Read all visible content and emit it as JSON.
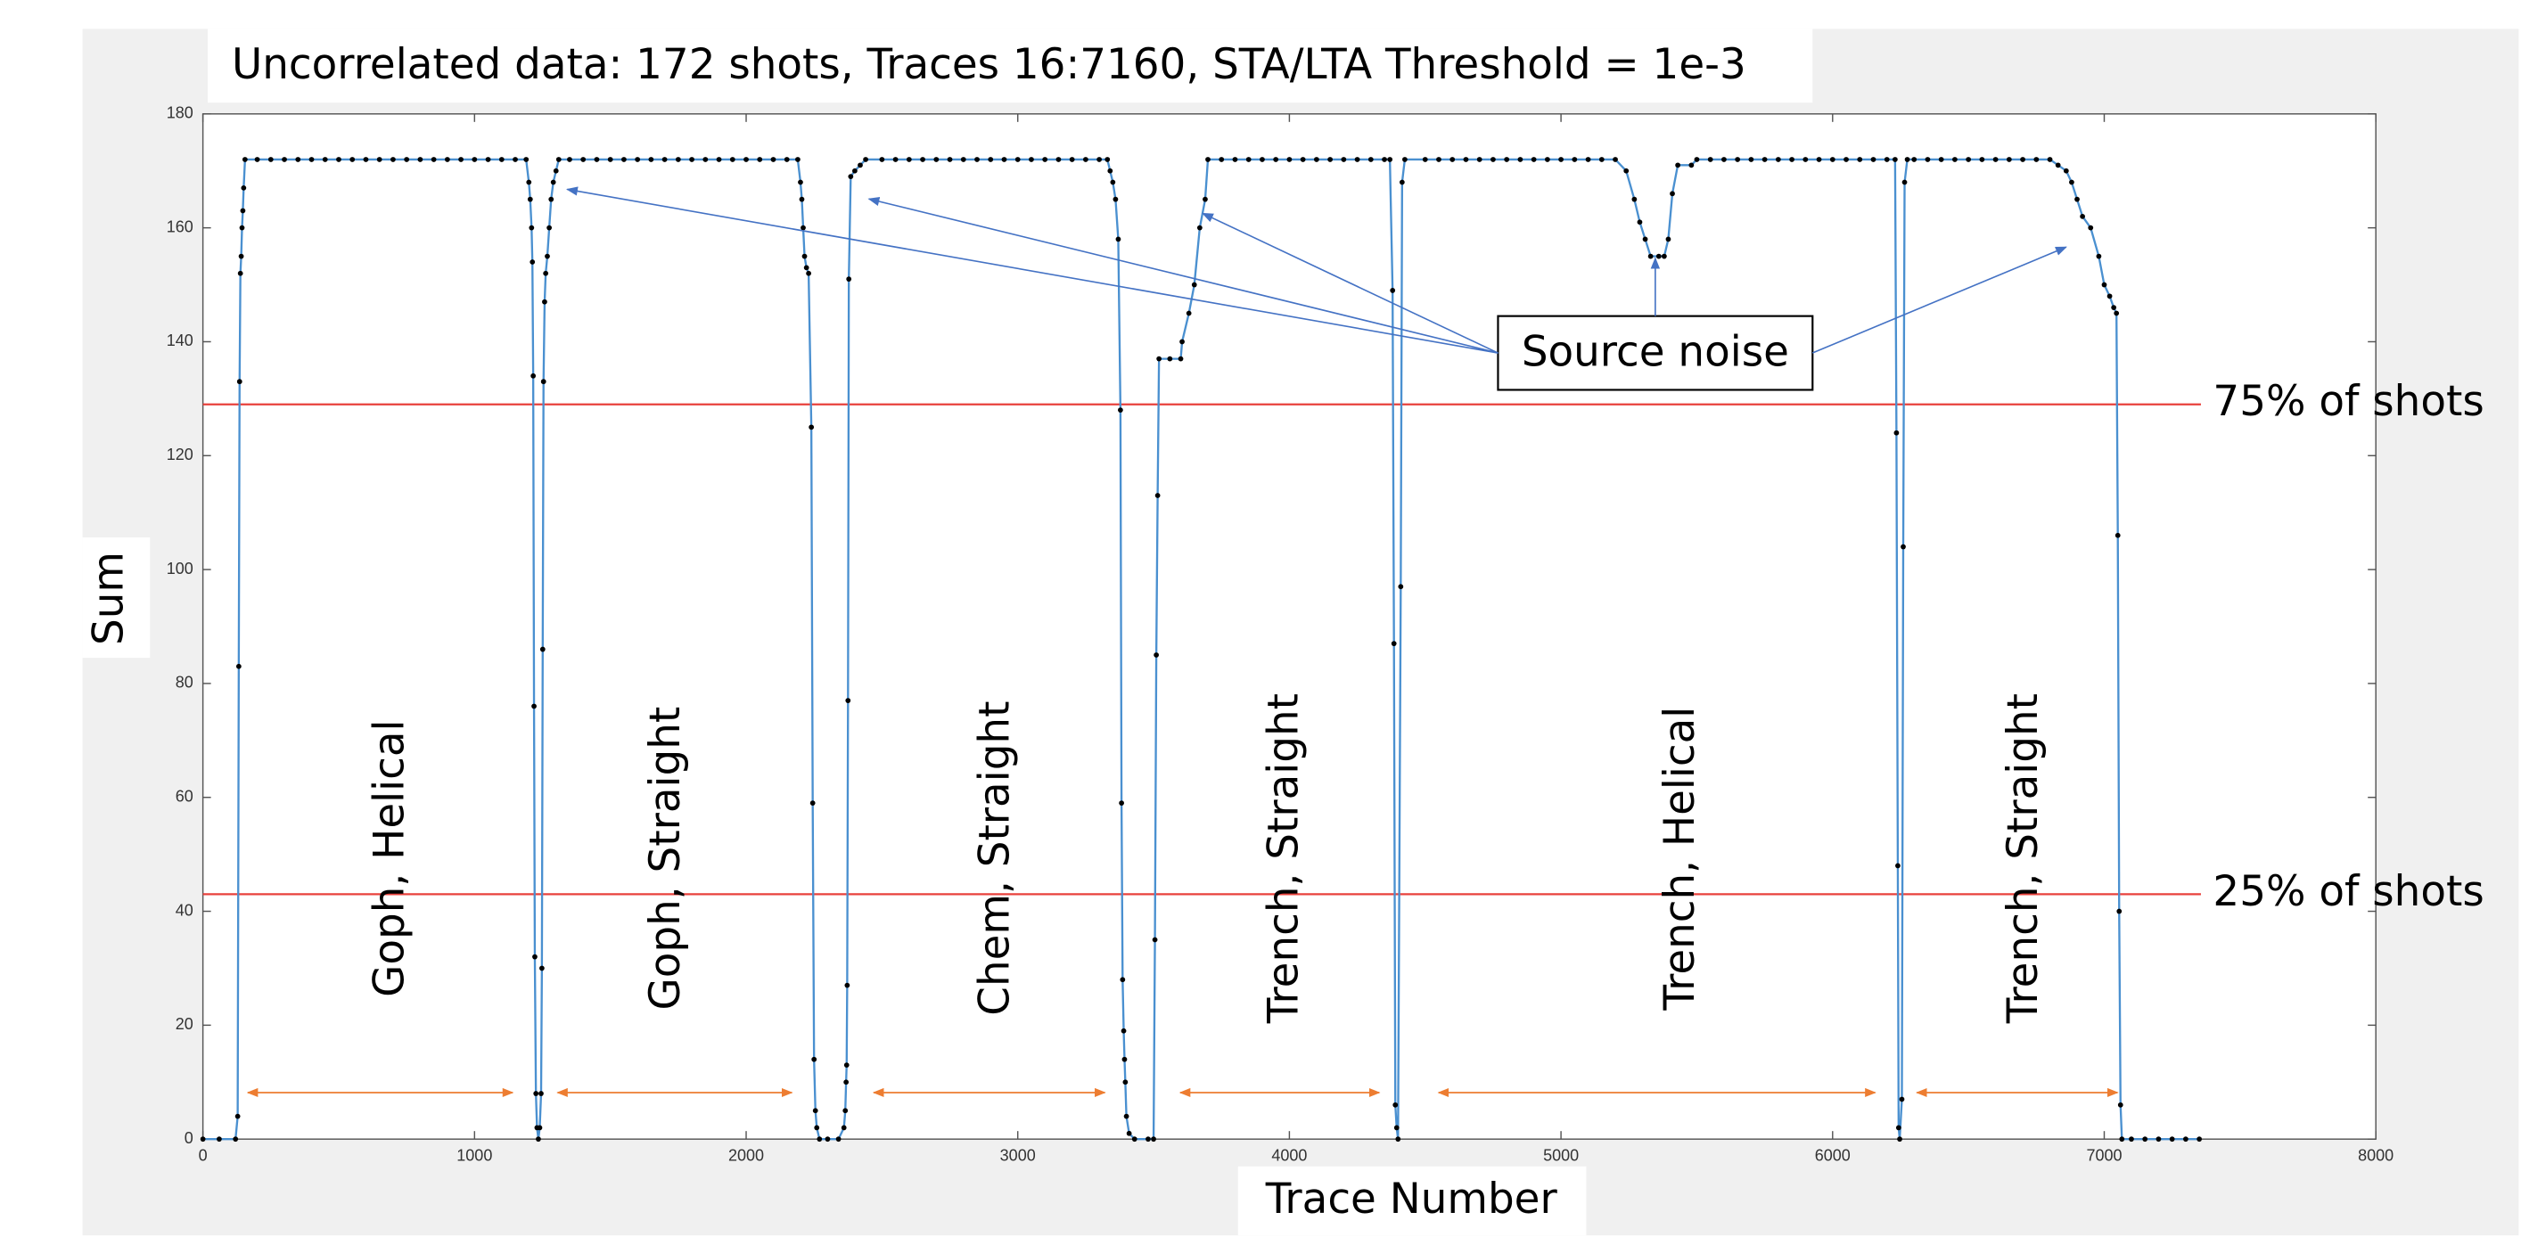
{
  "chart_data": {
    "type": "line",
    "title": "Uncorrelated data: 172 shots, Traces 16:7160, STA/LTA Threshold = 1e-3",
    "x_label": "Trace Number",
    "y_label": "Sum",
    "xlim": [
      0,
      8000
    ],
    "ylim": [
      0,
      180
    ],
    "xticks": [
      0,
      1000,
      2000,
      3000,
      4000,
      5000,
      6000,
      7000,
      8000
    ],
    "yticks": [
      0,
      20,
      40,
      60,
      80,
      100,
      120,
      140,
      160,
      180
    ],
    "x": [
      0,
      60,
      120,
      128,
      132,
      135,
      138,
      141,
      144,
      147,
      150,
      155,
      200,
      250,
      300,
      350,
      400,
      450,
      500,
      550,
      600,
      650,
      700,
      750,
      800,
      850,
      900,
      950,
      1000,
      1050,
      1100,
      1150,
      1190,
      1200,
      1205,
      1210,
      1213,
      1216,
      1219,
      1222,
      1226,
      1230,
      1235,
      1240,
      1245,
      1248,
      1251,
      1254,
      1258,
      1262,
      1268,
      1275,
      1282,
      1290,
      1300,
      1310,
      1350,
      1400,
      1450,
      1500,
      1550,
      1600,
      1650,
      1700,
      1750,
      1800,
      1850,
      1900,
      1950,
      2000,
      2050,
      2100,
      2150,
      2190,
      2200,
      2205,
      2210,
      2215,
      2222,
      2230,
      2240,
      2245,
      2250,
      2255,
      2260,
      2270,
      2300,
      2340,
      2360,
      2365,
      2368,
      2370,
      2372,
      2375,
      2378,
      2385,
      2400,
      2420,
      2440,
      2500,
      2550,
      2600,
      2650,
      2700,
      2750,
      2800,
      2850,
      2900,
      2950,
      3000,
      3050,
      3100,
      3150,
      3200,
      3250,
      3300,
      3330,
      3340,
      3350,
      3360,
      3370,
      3378,
      3382,
      3386,
      3390,
      3393,
      3396,
      3400,
      3410,
      3430,
      3480,
      3500,
      3505,
      3510,
      3515,
      3520,
      3560,
      3600,
      3605,
      3630,
      3650,
      3670,
      3690,
      3700,
      3750,
      3800,
      3850,
      3900,
      3950,
      4000,
      4050,
      4100,
      4150,
      4200,
      4250,
      4300,
      4350,
      4370,
      4380,
      4385,
      4390,
      4395,
      4400,
      4410,
      4415,
      4425,
      4500,
      4550,
      4600,
      4650,
      4700,
      4750,
      4800,
      4850,
      4900,
      4950,
      5000,
      5050,
      5100,
      5150,
      5200,
      5240,
      5270,
      5290,
      5310,
      5330,
      5360,
      5380,
      5395,
      5410,
      5430,
      5480,
      5500,
      5550,
      5600,
      5650,
      5700,
      5750,
      5800,
      5850,
      5900,
      5950,
      6000,
      6050,
      6100,
      6150,
      6200,
      6230,
      6235,
      6240,
      6243,
      6247,
      6255,
      6260,
      6265,
      6275,
      6300,
      6350,
      6400,
      6450,
      6500,
      6550,
      6600,
      6650,
      6700,
      6750,
      6800,
      6830,
      6860,
      6880,
      6900,
      6920,
      6950,
      6980,
      7000,
      7020,
      7035,
      7045,
      7050,
      7055,
      7060,
      7065,
      7100,
      7150,
      7200,
      7250,
      7300,
      7350
    ],
    "series": [
      {
        "name": "Sum",
        "color": "#4a90d0",
        "marker_color": "#000000",
        "values": [
          0,
          0,
          0,
          4,
          83,
          133,
          152,
          155,
          160,
          163,
          167,
          172,
          172,
          172,
          172,
          172,
          172,
          172,
          172,
          172,
          172,
          172,
          172,
          172,
          172,
          172,
          172,
          172,
          172,
          172,
          172,
          172,
          172,
          168,
          165,
          160,
          154,
          134,
          76,
          32,
          8,
          2,
          0,
          2,
          8,
          30,
          86,
          133,
          147,
          152,
          155,
          160,
          165,
          168,
          170,
          172,
          172,
          172,
          172,
          172,
          172,
          172,
          172,
          172,
          172,
          172,
          172,
          172,
          172,
          172,
          172,
          172,
          172,
          172,
          168,
          165,
          160,
          155,
          153,
          152,
          125,
          59,
          14,
          5,
          2,
          0,
          0,
          0,
          2,
          5,
          10,
          13,
          27,
          77,
          151,
          169,
          170,
          171,
          172,
          172,
          172,
          172,
          172,
          172,
          172,
          172,
          172,
          172,
          172,
          172,
          172,
          172,
          172,
          172,
          172,
          172,
          172,
          170,
          168,
          165,
          158,
          128,
          59,
          28,
          19,
          14,
          10,
          4,
          1,
          0,
          0,
          0,
          35,
          85,
          113,
          137,
          137,
          137,
          140,
          145,
          150,
          160,
          165,
          172,
          172,
          172,
          172,
          172,
          172,
          172,
          172,
          172,
          172,
          172,
          172,
          172,
          172,
          172,
          149,
          87,
          6,
          2,
          0,
          97,
          168,
          172,
          172,
          172,
          172,
          172,
          172,
          172,
          172,
          172,
          172,
          172,
          172,
          172,
          172,
          172,
          172,
          170,
          165,
          161,
          158,
          155,
          155,
          155,
          158,
          166,
          171,
          171,
          172,
          172,
          172,
          172,
          172,
          172,
          172,
          172,
          172,
          172,
          172,
          172,
          172,
          172,
          172,
          172,
          124,
          48,
          2,
          0,
          7,
          104,
          168,
          172,
          172,
          172,
          172,
          172,
          172,
          172,
          172,
          172,
          172,
          172,
          172,
          171,
          170,
          168,
          165,
          162,
          160,
          155,
          150,
          148,
          146,
          145,
          106,
          40,
          6,
          0,
          0,
          0,
          0,
          0,
          0,
          0
        ]
      }
    ],
    "reference_lines": [
      {
        "value": 129,
        "label": "75% of shots",
        "color": "#e8413c"
      },
      {
        "value": 43,
        "label": "25% of shots",
        "color": "#e8413c"
      }
    ],
    "segment_labels": [
      "Goph, Helical",
      "Goph, Straight",
      "Chem, Straight",
      "Trench, Straight",
      "Trench, Helical",
      "Trench, Straight"
    ],
    "segment_arrow_color": "#ed7d31",
    "callout": "Source noise",
    "callout_arrow_color": "#4472c4"
  }
}
